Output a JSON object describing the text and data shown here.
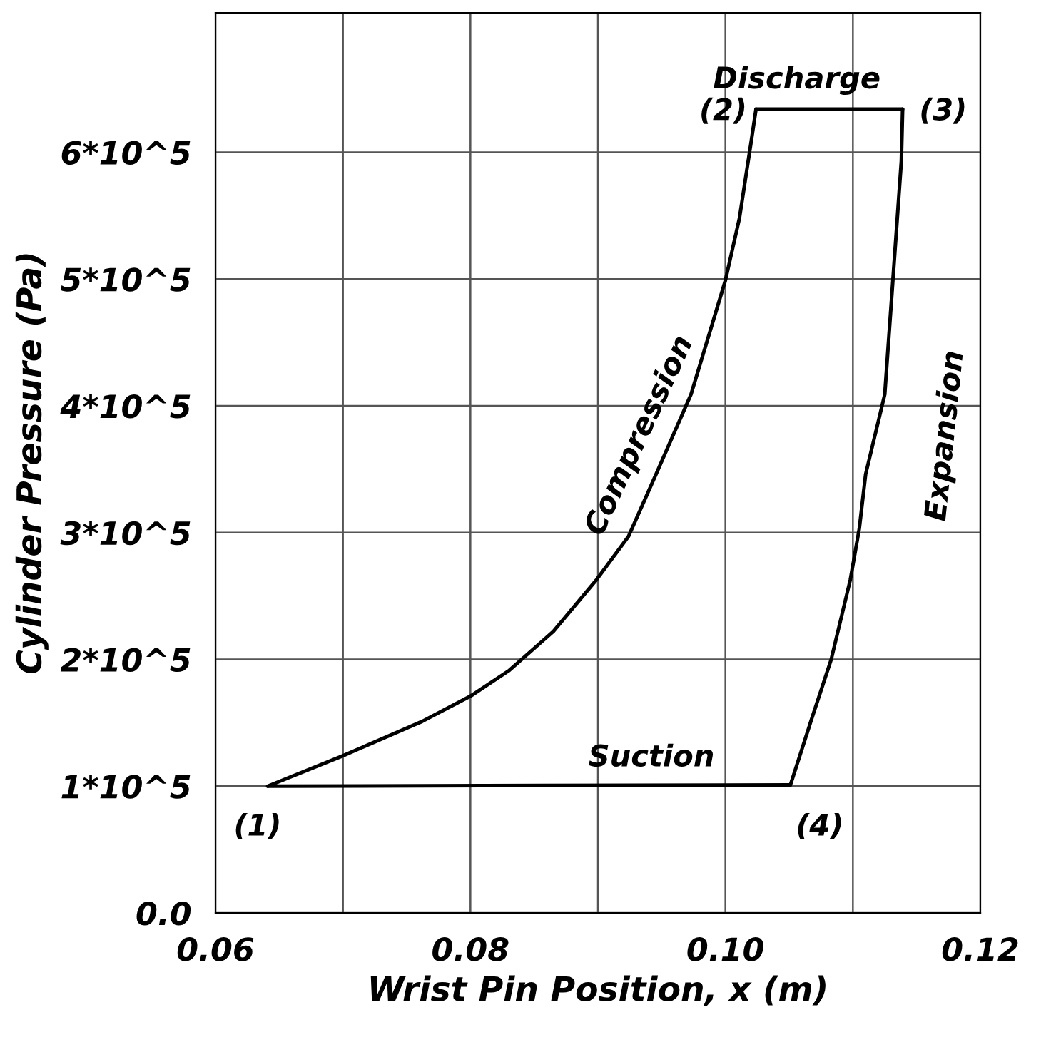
{
  "chart_data": {
    "type": "line",
    "xlabel": "Wrist Pin Position, x (m)",
    "ylabel": "Cylinder Pressure (Pa)",
    "xlim": [
      0.06,
      0.12
    ],
    "ylim": [
      0,
      710000
    ],
    "xticks": [
      0.06,
      {
        "value": 0.07,
        "label": null
      },
      "0.08",
      {
        "value": 0.09,
        "label": null
      },
      "0.10",
      {
        "value": 0.11,
        "label": null
      },
      0.12
    ],
    "yticks": [
      {
        "value": 0,
        "label": "0.0"
      },
      {
        "value": 100000,
        "label": "1*10^5"
      },
      {
        "value": 200000,
        "label": "2*10^5"
      },
      {
        "value": 300000,
        "label": "3*10^5"
      },
      {
        "value": 400000,
        "label": "4*10^5"
      },
      {
        "value": 500000,
        "label": "5*10^5"
      },
      {
        "value": 600000,
        "label": "6*10^5"
      }
    ],
    "grid": true,
    "legend": false,
    "marker": "none",
    "line_style": "solid",
    "series": [
      {
        "color": "#000000",
        "x": [
          0.0641,
          0.07,
          0.0762,
          0.08,
          0.083,
          0.0865,
          0.0899,
          0.0924,
          0.0946,
          0.0973,
          0.1,
          0.1011,
          0.102,
          0.1024
        ],
        "values": [
          100000,
          124000,
          151000,
          171000,
          191000,
          222000,
          263000,
          297000,
          347000,
          409000,
          499000,
          548000,
          607000,
          634000
        ]
      },
      {
        "color": "#000000",
        "x": [
          0.1024,
          0.1139
        ],
        "values": [
          634000,
          634000
        ]
      },
      {
        "color": "#000000",
        "x": [
          0.1051,
          0.1067,
          0.1083,
          0.1098,
          0.1105,
          0.111,
          0.1125,
          0.1132,
          0.1138,
          0.1139
        ],
        "values": [
          101000,
          151000,
          200000,
          263000,
          303000,
          346000,
          409000,
          508000,
          593000,
          634000
        ]
      },
      {
        "color": "#000000",
        "x": [
          0.0641,
          0.1051
        ],
        "values": [
          100000,
          101000
        ]
      }
    ],
    "annotations": [
      "Discharge",
      "(2)",
      "(3)",
      "Compression",
      "Expansion",
      "Suction",
      "(1)",
      "(4)"
    ]
  }
}
